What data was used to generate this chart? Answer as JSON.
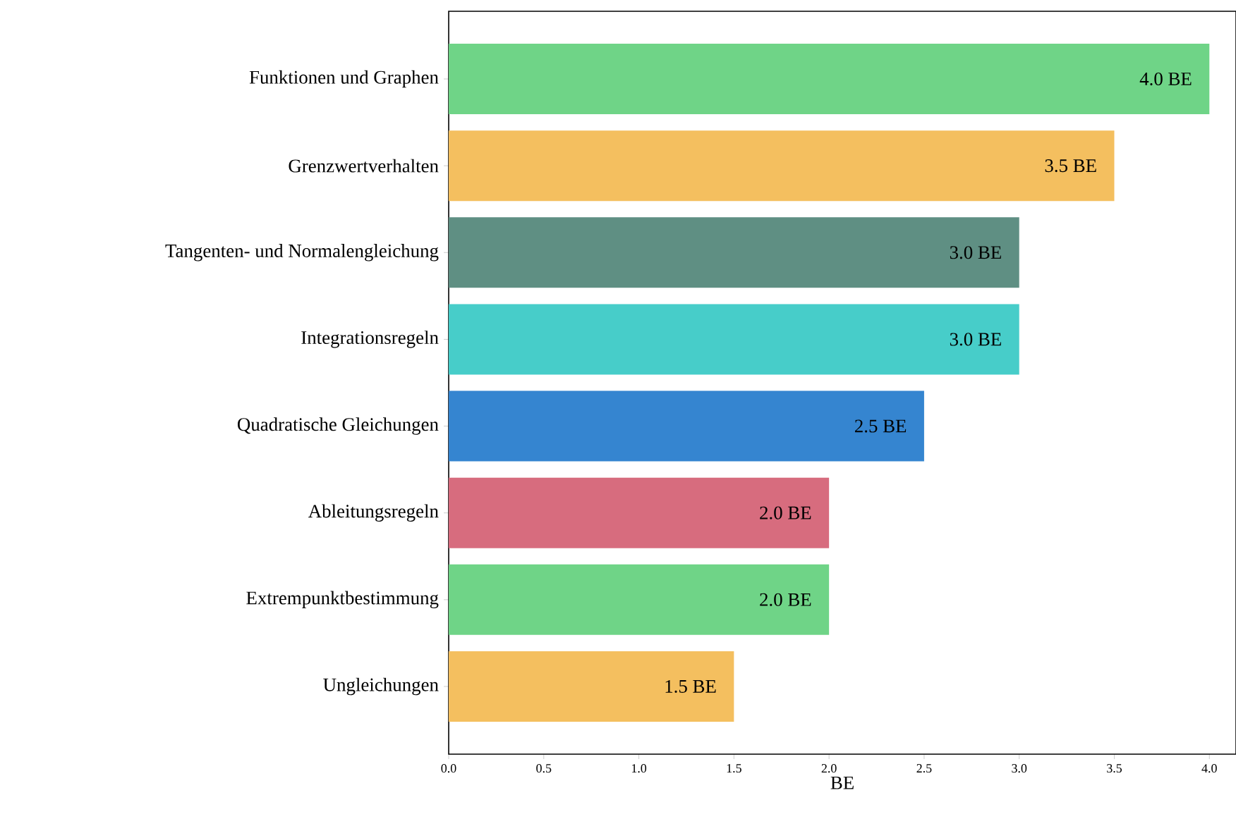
{
  "chart_data": {
    "type": "bar",
    "orientation": "horizontal",
    "xlabel": "BE",
    "categories": [
      "Funktionen und Graphen",
      "Grenzwertverhalten",
      "Tangenten- und Normalengleichung",
      "Integrationsregeln",
      "Quadratische Gleichungen",
      "Ableitungsregeln",
      "Extrempunktbestimmung",
      "Ungleichungen"
    ],
    "values": [
      4.0,
      3.5,
      3.0,
      3.0,
      2.5,
      2.0,
      2.0,
      1.5
    ],
    "colors": [
      "#6fd487",
      "#f4bf5f",
      "#5f8f83",
      "#47cdc9",
      "#3585d0",
      "#d76c7e",
      "#6fd487",
      "#f4bf5f"
    ],
    "value_labels": [
      "4.0 BE",
      "3.5 BE",
      "3.0 BE",
      "3.0 BE",
      "2.5 BE",
      "2.0 BE",
      "2.0 BE",
      "1.5 BE"
    ],
    "xlim": [
      0,
      4.14
    ],
    "xticks": [
      {
        "value": 0,
        "label": "0.0"
      },
      {
        "value": 0.5,
        "label": "0.5"
      },
      {
        "value": 1,
        "label": "1.0"
      },
      {
        "value": 1.5,
        "label": "1.5"
      },
      {
        "value": 2,
        "label": "2.0"
      },
      {
        "value": 2.5,
        "label": "2.5"
      },
      {
        "value": 3,
        "label": "3.0"
      },
      {
        "value": 3.5,
        "label": "3.5"
      },
      {
        "value": 4,
        "label": "4.0"
      }
    ],
    "grid": false
  }
}
